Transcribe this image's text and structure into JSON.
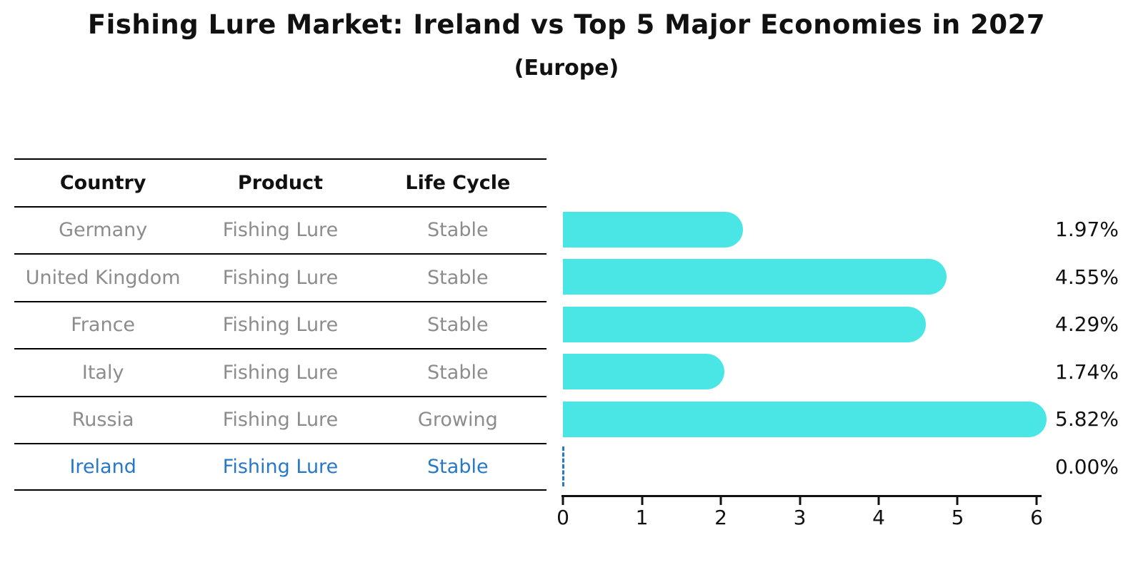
{
  "chart_data": {
    "type": "bar",
    "orientation": "horizontal",
    "title": "Fishing Lure Market: Ireland vs Top 5 Major Economies in 2027",
    "subtitle": "(Europe)",
    "categories": [
      "Germany",
      "United Kingdom",
      "France",
      "Italy",
      "Russia",
      "Ireland"
    ],
    "values": [
      1.97,
      4.55,
      4.29,
      1.74,
      5.82,
      0
    ],
    "value_labels": [
      "1.97%",
      "4.55%",
      "4.29%",
      "1.74%",
      "5.82%",
      "0.00%"
    ],
    "xlim": [
      0,
      6
    ],
    "x_ticks": [
      "0",
      "1",
      "2",
      "3",
      "4",
      "5",
      "6"
    ],
    "bar_color": "#4ae6e6",
    "highlight_category": "Ireland",
    "highlight_color": "#2878c8",
    "grid": false,
    "legend": false
  },
  "table": {
    "headers": [
      "Country",
      "Product",
      "Life Cycle"
    ],
    "rows": [
      {
        "country": "Germany",
        "product": "Fishing Lure",
        "life_cycle": "Stable"
      },
      {
        "country": "United Kingdom",
        "product": "Fishing Lure",
        "life_cycle": "Stable"
      },
      {
        "country": "France",
        "product": "Fishing Lure",
        "life_cycle": "Stable"
      },
      {
        "country": "Italy",
        "product": "Fishing Lure",
        "life_cycle": "Stable"
      },
      {
        "country": "Russia",
        "product": "Fishing Lure",
        "life_cycle": "Growing"
      },
      {
        "country": "Ireland",
        "product": "Fishing Lure",
        "life_cycle": "Stable"
      }
    ]
  }
}
